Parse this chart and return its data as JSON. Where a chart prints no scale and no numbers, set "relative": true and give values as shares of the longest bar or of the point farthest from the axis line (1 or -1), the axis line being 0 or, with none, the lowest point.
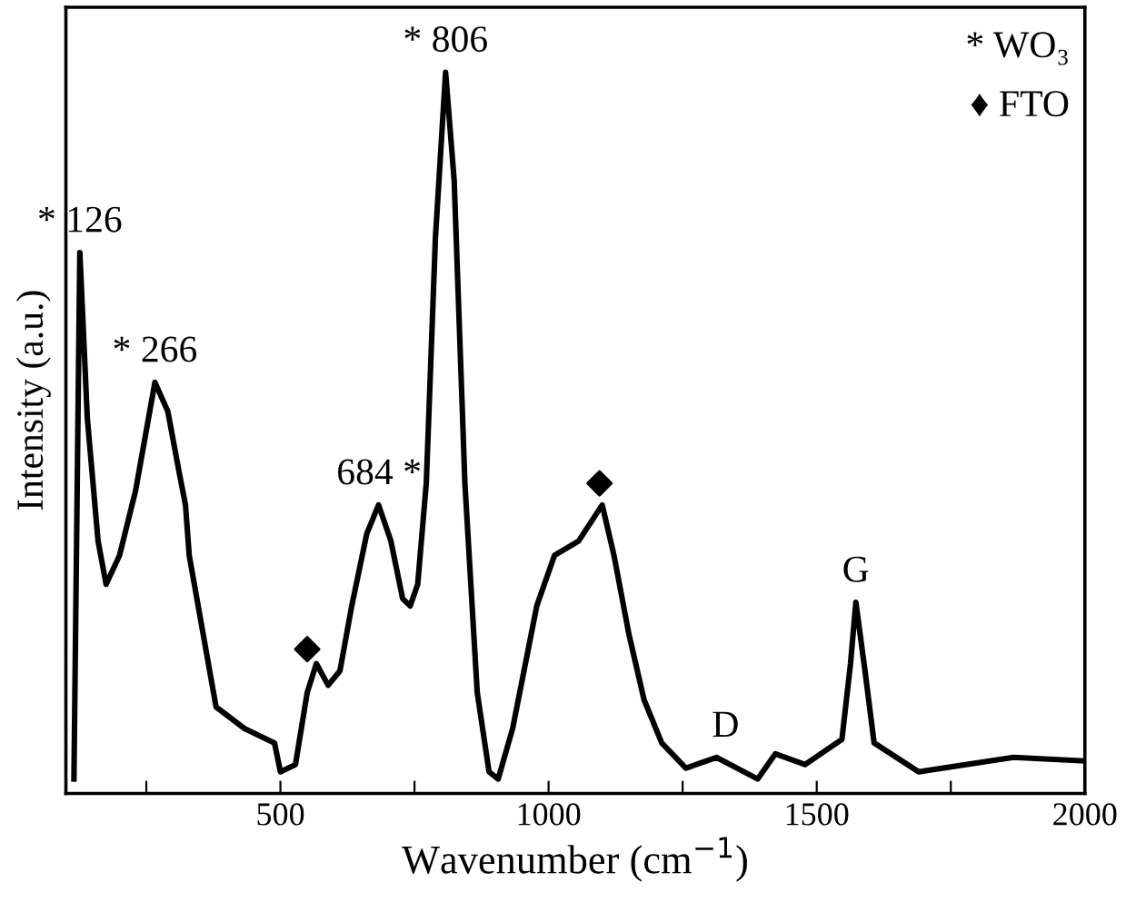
{
  "chart_data": {
    "type": "line",
    "relative": true,
    "xlabel": "Wavenumber (cm$^{−1}$)",
    "ylabel": "Intensity (a.u.)",
    "xlim": [
      100,
      2000
    ],
    "xticks": [
      {
        "value": 250,
        "label": null
      },
      500,
      {
        "value": 750,
        "label": null
      },
      1000,
      {
        "value": 1250,
        "label": null
      },
      1500,
      {
        "value": 1750,
        "label": null
      },
      2000
    ],
    "grid": false,
    "legend": false,
    "series": [
      {
        "color": "#000000",
        "marker": "none",
        "line_style": "solid",
        "x": [
          115,
          126,
          140,
          160,
          175,
          200,
          230,
          266,
          290,
          310,
          323,
          330,
          380,
          433,
          489,
          500,
          528,
          550,
          567,
          589,
          611,
          633,
          661,
          683,
          706,
          728,
          742,
          756,
          772,
          789,
          808,
          824,
          844,
          867,
          889,
          906,
          933,
          978,
          1011,
          1056,
          1100,
          1122,
          1150,
          1178,
          1211,
          1256,
          1313,
          1390,
          1423,
          1478,
          1547,
          1563,
          1573,
          1590,
          1607,
          1690,
          1867,
          2000
        ],
        "values": [
          0.02,
          0.75,
          0.52,
          0.35,
          0.29,
          0.33,
          0.42,
          0.57,
          0.53,
          0.45,
          0.4,
          0.33,
          0.12,
          0.09,
          0.07,
          0.03,
          0.04,
          0.14,
          0.18,
          0.15,
          0.17,
          0.26,
          0.36,
          0.4,
          0.35,
          0.27,
          0.26,
          0.29,
          0.43,
          0.77,
          1.0,
          0.85,
          0.43,
          0.14,
          0.03,
          0.02,
          0.09,
          0.26,
          0.33,
          0.35,
          0.4,
          0.33,
          0.22,
          0.13,
          0.07,
          0.035,
          0.05,
          0.02,
          0.055,
          0.04,
          0.075,
          0.18,
          0.265,
          0.17,
          0.07,
          0.03,
          0.05,
          0.045
        ]
      },
      {
        "type": "scatter",
        "color": "#000000",
        "marker": "diamond",
        "x": [
          550,
          1095
        ],
        "values": [
          0.2,
          0.43
        ]
      }
    ],
    "annotations": [
      {
        "text": "* 126",
        "x": 126,
        "y": 0.75
      },
      {
        "text": "* 266",
        "x": 266,
        "y": 0.57
      },
      {
        "text": "684 *",
        "x": 684,
        "y": 0.4
      },
      {
        "text": "* 806",
        "x": 808,
        "y": 1.0
      },
      {
        "text": "D",
        "x": 1330,
        "y": 0.05
      },
      {
        "text": "G",
        "x": 1573,
        "y": 0.265
      },
      "* WO₃",
      "♦ FTO"
    ]
  }
}
